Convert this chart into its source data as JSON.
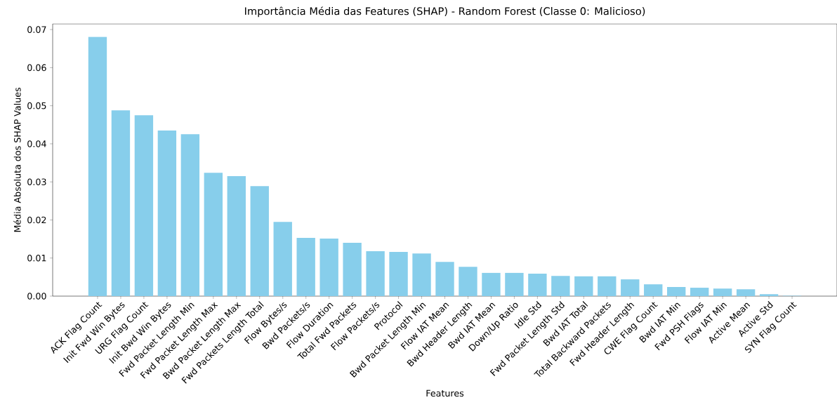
{
  "chart_data": {
    "type": "bar",
    "title": "Importância Média das Features (SHAP) - Random Forest (Classe 0: Malicioso)",
    "xlabel": "Features",
    "ylabel": "Média Absoluta dos SHAP Values",
    "categories": [
      "ACK Flag Count",
      "Init Fwd Win Bytes",
      "URG Flag Count",
      "Init Bwd Win Bytes",
      "Fwd Packet Length Min",
      "Fwd Packet Length Max",
      "Bwd Packet Length Max",
      "Fwd Packets Length Total",
      "Flow Bytes/s",
      "Bwd Packets/s",
      "Flow Duration",
      "Total Fwd Packets",
      "Flow Packets/s",
      "Protocol",
      "Bwd Packet Length Min",
      "Flow IAT Mean",
      "Bwd Header Length",
      "Bwd IAT Mean",
      "Down/Up Ratio",
      "Idle Std",
      "Fwd Packet Length Std",
      "Bwd IAT Total",
      "Total Backward Packets",
      "Fwd Header Length",
      "CWE Flag Count",
      "Bwd IAT Min",
      "Fwd PSH Flags",
      "Flow IAT Min",
      "Active Mean",
      "Active Std",
      "SYN Flag Count"
    ],
    "values": [
      0.0681,
      0.0488,
      0.0475,
      0.0435,
      0.0425,
      0.0324,
      0.0315,
      0.0289,
      0.0195,
      0.0153,
      0.0151,
      0.014,
      0.0118,
      0.0116,
      0.0112,
      0.009,
      0.0077,
      0.0061,
      0.0061,
      0.0059,
      0.0053,
      0.0052,
      0.0052,
      0.0044,
      0.0031,
      0.0024,
      0.0022,
      0.002,
      0.0018,
      0.0005,
      0.0001
    ],
    "color": "#87ceeb",
    "ylim": [
      0,
      0.0715
    ],
    "yticks": [
      {
        "value": 0,
        "label": "0.00"
      },
      {
        "value": 0.01,
        "label": "0.01"
      },
      {
        "value": 0.02,
        "label": "0.02"
      },
      {
        "value": 0.03,
        "label": "0.03"
      },
      {
        "value": 0.04,
        "label": "0.04"
      },
      {
        "value": 0.05,
        "label": "0.05"
      },
      {
        "value": 0.06,
        "label": "0.06"
      },
      {
        "value": 0.07,
        "label": "0.07"
      }
    ]
  }
}
